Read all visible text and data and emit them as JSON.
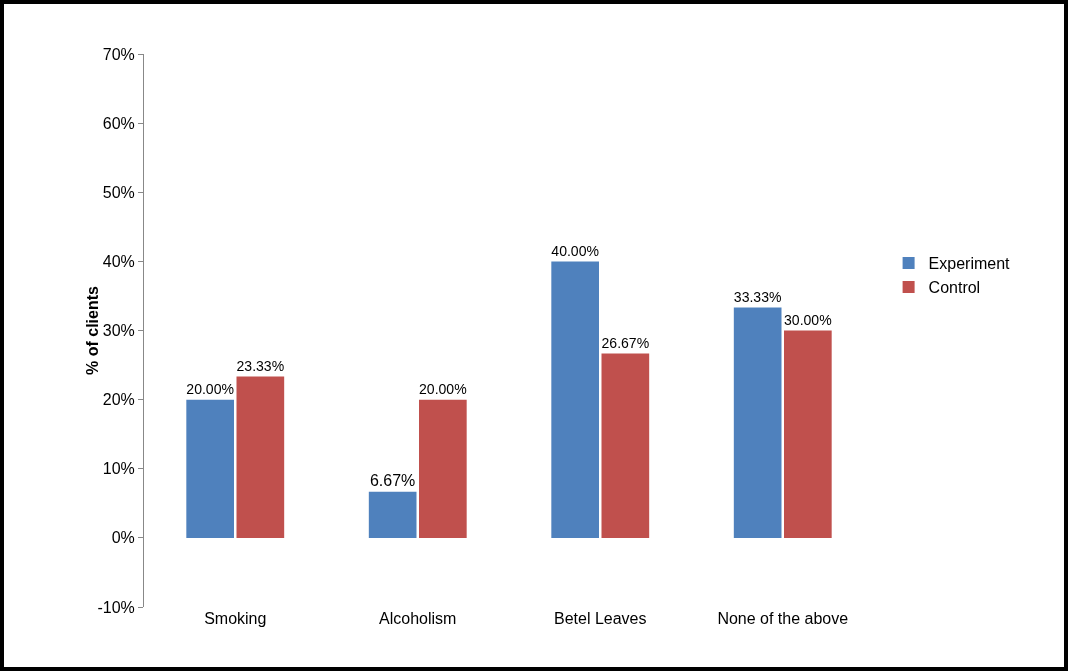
{
  "chart_data": {
    "type": "bar",
    "ylabel": "% of clients",
    "categories": [
      "Smoking",
      "Alcoholism",
      "Betel Leaves",
      "None of the above"
    ],
    "series": [
      {
        "name": "Experiment",
        "color": "#4f81bd",
        "values": [
          20,
          6.67,
          40,
          33.33
        ],
        "value_labels": [
          "20.00%",
          "6.67%",
          "40.00%",
          "33.33%"
        ]
      },
      {
        "name": "Control",
        "color": "#c0504d",
        "values": [
          23.33,
          20,
          26.67,
          30
        ],
        "value_labels": [
          "23.33%",
          "20.00%",
          "26.67%",
          "30.00%"
        ]
      }
    ],
    "ylim": [
      -10,
      70
    ],
    "yticks": [
      {
        "value": -10,
        "label": "-10%"
      },
      {
        "value": 0,
        "label": "0%"
      },
      {
        "value": 10,
        "label": "10%"
      },
      {
        "value": 20,
        "label": "20%"
      },
      {
        "value": 30,
        "label": "30%"
      },
      {
        "value": 40,
        "label": "40%"
      },
      {
        "value": 50,
        "label": "50%"
      },
      {
        "value": 60,
        "label": "60%"
      },
      {
        "value": 70,
        "label": "70%"
      }
    ],
    "grid": false,
    "legend": "right"
  }
}
